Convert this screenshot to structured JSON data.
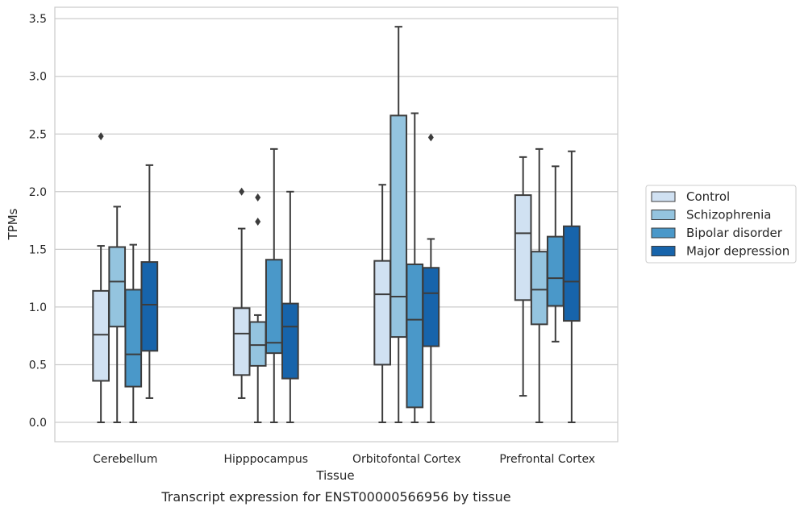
{
  "chart_data": {
    "type": "box",
    "xlabel": "Tissue",
    "ylabel": "TPMs",
    "caption": "Transcript expression for ENST00000566956 by tissue",
    "categories": [
      "Cerebellum",
      "Hipppocampus",
      "Orbitofontal Cortex",
      "Prefrontal Cortex"
    ],
    "ylim": [
      -0.17,
      3.6
    ],
    "yticks": [
      "0.0",
      "0.5",
      "1.0",
      "1.5",
      "2.0",
      "2.5",
      "3.0",
      "3.5"
    ],
    "grid": "horizontal",
    "legend_position": "right",
    "series": [
      {
        "name": "Control",
        "color": "#d0e1f2",
        "boxes": [
          {
            "min": 0.0,
            "q1": 0.36,
            "median": 0.76,
            "q3": 1.14,
            "max": 1.53,
            "outliers": [
              2.48
            ]
          },
          {
            "min": 0.21,
            "q1": 0.41,
            "median": 0.77,
            "q3": 0.99,
            "max": 1.68,
            "outliers": [
              2.0
            ]
          },
          {
            "min": 0.0,
            "q1": 0.5,
            "median": 1.11,
            "q3": 1.4,
            "max": 2.06,
            "outliers": []
          },
          {
            "min": 0.23,
            "q1": 1.06,
            "median": 1.64,
            "q3": 1.97,
            "max": 2.3,
            "outliers": []
          }
        ]
      },
      {
        "name": "Schizophrenia",
        "color": "#94c4df",
        "boxes": [
          {
            "min": 0.0,
            "q1": 0.83,
            "median": 1.22,
            "q3": 1.52,
            "max": 1.87,
            "outliers": []
          },
          {
            "min": 0.0,
            "q1": 0.49,
            "median": 0.67,
            "q3": 0.87,
            "max": 0.93,
            "outliers": [
              1.95,
              1.74
            ]
          },
          {
            "min": 0.0,
            "q1": 0.74,
            "median": 1.09,
            "q3": 2.66,
            "max": 3.43,
            "outliers": []
          },
          {
            "min": 0.0,
            "q1": 0.85,
            "median": 1.15,
            "q3": 1.48,
            "max": 2.37,
            "outliers": []
          }
        ]
      },
      {
        "name": "Bipolar disorder",
        "color": "#4a98c9",
        "boxes": [
          {
            "min": 0.0,
            "q1": 0.31,
            "median": 0.59,
            "q3": 1.15,
            "max": 1.54,
            "outliers": []
          },
          {
            "min": 0.0,
            "q1": 0.6,
            "median": 0.69,
            "q3": 1.41,
            "max": 2.37,
            "outliers": []
          },
          {
            "min": 0.0,
            "q1": 0.13,
            "median": 0.89,
            "q3": 1.37,
            "max": 2.68,
            "outliers": []
          },
          {
            "min": 0.7,
            "q1": 1.01,
            "median": 1.25,
            "q3": 1.61,
            "max": 2.22,
            "outliers": []
          }
        ]
      },
      {
        "name": "Major depression",
        "color": "#1764ab",
        "boxes": [
          {
            "min": 0.21,
            "q1": 0.62,
            "median": 1.02,
            "q3": 1.39,
            "max": 2.23,
            "outliers": []
          },
          {
            "min": 0.0,
            "q1": 0.38,
            "median": 0.83,
            "q3": 1.03,
            "max": 2.0,
            "outliers": []
          },
          {
            "min": 0.0,
            "q1": 0.66,
            "median": 1.12,
            "q3": 1.34,
            "max": 1.59,
            "outliers": [
              2.47
            ]
          },
          {
            "min": 0.0,
            "q1": 0.88,
            "median": 1.22,
            "q3": 1.7,
            "max": 2.35,
            "outliers": []
          }
        ]
      }
    ]
  }
}
